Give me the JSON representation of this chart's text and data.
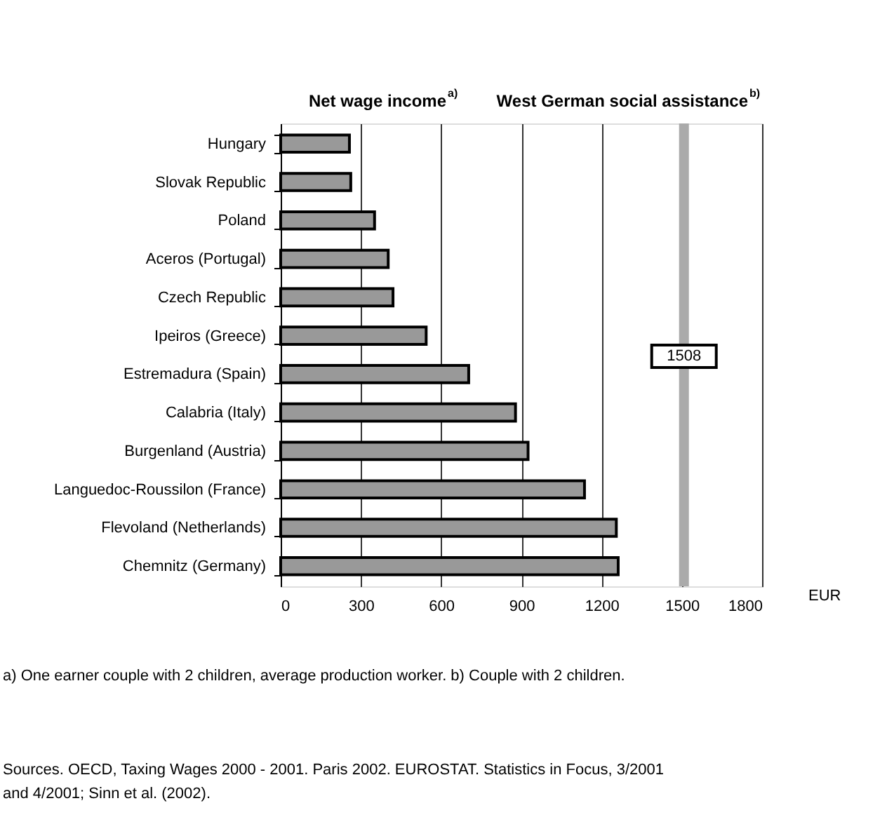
{
  "chart_data": {
    "type": "bar",
    "orientation": "horizontal",
    "categories": [
      "Hungary",
      "Slovak Republic",
      "Poland",
      "Aceros (Portugal)",
      "Czech Republic",
      "Ipeiros (Greece)",
      "Estremadura (Spain)",
      "Calabria (Italy)",
      "Burgenland (Austria)",
      "Languedoc-Roussilon (France)",
      "Flevoland (Netherlands)",
      "Chemnitz (Germany)"
    ],
    "values": [
      257,
      262,
      351,
      402,
      420,
      544,
      703,
      878,
      925,
      1136,
      1255,
      1262
    ],
    "color": "#999999",
    "xlabel": "EUR",
    "xlim": [
      0,
      1800
    ],
    "xticks": [
      0,
      300,
      600,
      900,
      1200,
      1500,
      1800
    ],
    "grid": "x",
    "ref_lines": [
      {
        "axis": "x",
        "value": 1508,
        "label": "1508",
        "color": "#aaaaaa"
      }
    ],
    "annotations": [
      "Net wage income$^{a)}$",
      "West German social assistance$^{b)}$",
      "a) One earner couple with 2 children, average production worker. b) Couple with 2 children.",
      "Sources. OECD, Taxing Wages 2000 - 2001. Paris 2002. EUROSTAT. Statistics in Focus, 3/2001\nand 4/2001; Sinn et al. (2002)."
    ]
  }
}
